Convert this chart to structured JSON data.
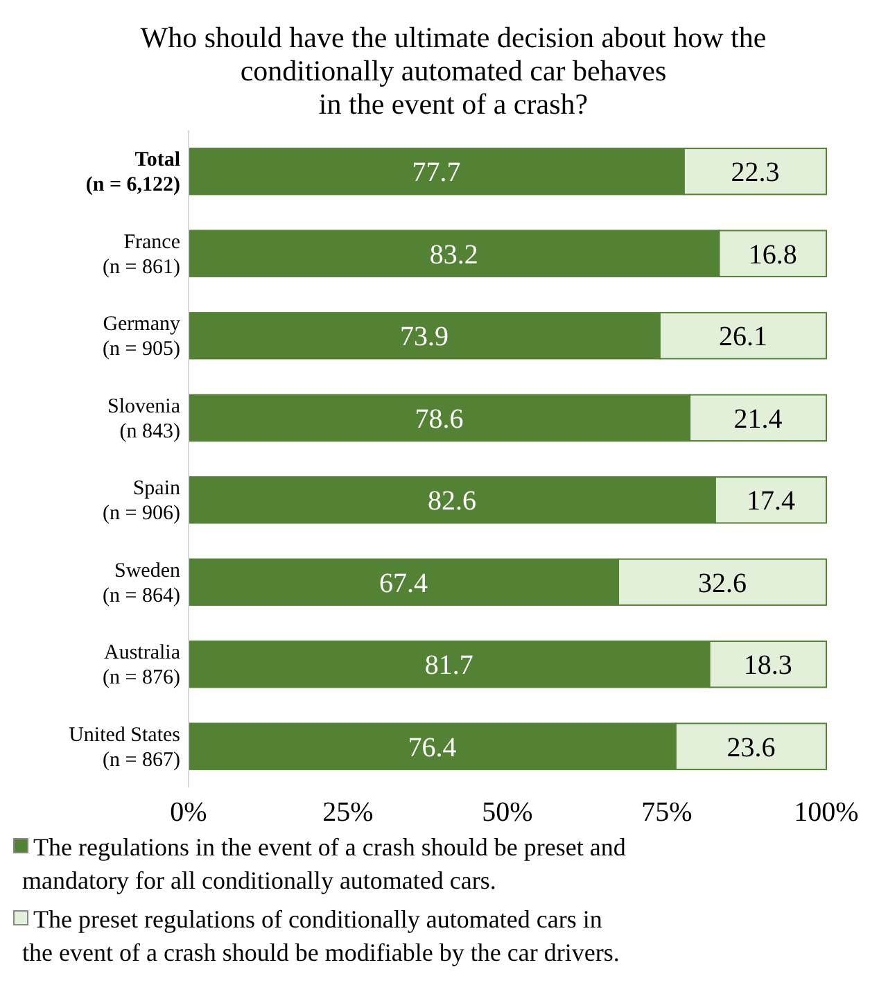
{
  "chart_data": {
    "type": "bar",
    "orientation": "horizontal",
    "stacked": true,
    "title": "Who should have the ultimate decision about how the\nconditionally automated car behaves\nin the event of a crash?",
    "categories": [
      "Total\n(n = 6,122)",
      "France\n(n = 861)",
      "Germany\n(n = 905)",
      "Slovenia\n(n 843)",
      "Spain\n(n = 906)",
      "Sweden\n(n = 864)",
      "Australia\n(n = 876)",
      "United States\n(n = 867)"
    ],
    "series": [
      {
        "name": "The regulations in the event of a crash should be preset and mandatory for all conditionally automated cars.",
        "color": "#548235",
        "values": [
          77.7,
          83.2,
          73.9,
          78.6,
          82.6,
          67.4,
          81.7,
          76.4
        ]
      },
      {
        "name": "The preset regulations of conditionally automated cars in the event of a crash should be modifiable by the car drivers.",
        "color": "#e2f0d9",
        "values": [
          22.3,
          16.8,
          26.1,
          21.4,
          17.4,
          32.6,
          18.3,
          23.6
        ]
      }
    ],
    "xlim": [
      0,
      100
    ],
    "xticks": [
      {
        "value": 0,
        "label": "0%"
      },
      {
        "value": 25,
        "label": "25%"
      },
      {
        "value": 50,
        "label": "50%"
      },
      {
        "value": 75,
        "label": "75%"
      },
      {
        "value": 100,
        "label": "100%"
      }
    ],
    "data_labels": true,
    "grid": false,
    "legend": "bottom"
  }
}
